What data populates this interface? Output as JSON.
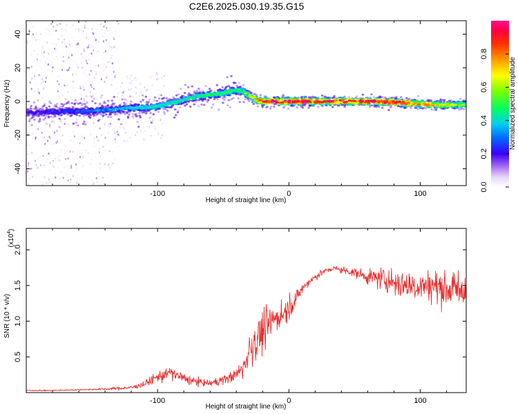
{
  "title": "C2E6.2025.030.19.35.G15",
  "colors": {
    "signal": "#e83030",
    "background": "#ffffff",
    "colormap": [
      "#f4eefd",
      "#d9c4f5",
      "#a070e8",
      "#5a12e0",
      "#2a00ff",
      "#0050ff",
      "#00bfff",
      "#00e0c8",
      "#00ff40",
      "#80ff00",
      "#ffff00",
      "#ffb000",
      "#ff5000",
      "#ff0040",
      "#ff1090"
    ]
  },
  "chart_data": [
    {
      "id": "spectrogram",
      "type": "heatmap",
      "xlabel": "Height of straight line (km)",
      "ylabel": "Frequency (Hz)",
      "xlim": [
        -200,
        135
      ],
      "ylim": [
        -50,
        48
      ],
      "xticks": [
        -100,
        0,
        100
      ],
      "xtick_labels": [
        "-100",
        "0",
        "100"
      ],
      "yticks": [
        -40,
        -20,
        0,
        20,
        40
      ],
      "ytick_labels": [
        "-40",
        "-20",
        "0",
        "20",
        "40"
      ],
      "colorbar": {
        "label": "Normalized spectral amplitude",
        "range": [
          0,
          1
        ],
        "ticks": [
          0.0,
          0.2,
          0.4,
          0.6,
          0.8
        ],
        "tick_labels": [
          "0.0",
          "0.2",
          "0.4",
          "0.6",
          "0.8"
        ]
      },
      "ridge": {
        "x": [
          -200,
          -180,
          -160,
          -140,
          -120,
          -100,
          -90,
          -80,
          -70,
          -60,
          -50,
          -40,
          -35,
          -30,
          -25,
          -20,
          -10,
          0,
          10,
          30,
          50,
          70,
          90,
          110,
          135
        ],
        "freq": [
          -7,
          -6,
          -6,
          -5,
          -4,
          -3,
          -1,
          1,
          3,
          4,
          5,
          7,
          6,
          3,
          1,
          0,
          0,
          0,
          0,
          0,
          0,
          0,
          -1,
          -2,
          -2
        ],
        "amplitude": [
          0.25,
          0.3,
          0.35,
          0.4,
          0.45,
          0.5,
          0.5,
          0.5,
          0.55,
          0.55,
          0.55,
          0.55,
          0.6,
          0.65,
          0.8,
          0.9,
          0.92,
          0.92,
          0.9,
          0.88,
          0.9,
          0.92,
          0.85,
          0.75,
          0.6
        ]
      }
    },
    {
      "id": "snr",
      "type": "line",
      "xlabel": "Height of straight line (km)",
      "ylabel": "SNR (10 * v/v)",
      "multiplier_label": "(x10",
      "multiplier_exp": "4",
      "xlim": [
        -200,
        135
      ],
      "ylim": [
        0,
        2.3
      ],
      "xticks": [
        -100,
        0,
        100
      ],
      "xtick_labels": [
        "-100",
        "0",
        "100"
      ],
      "yticks": [
        0.5,
        1.0,
        1.5,
        2.0
      ],
      "ytick_labels": [
        "0.5",
        "1.0",
        "1.5",
        "2.0"
      ],
      "series": [
        {
          "x": [
            -200,
            -180,
            -160,
            -140,
            -120,
            -110,
            -100,
            -95,
            -90,
            -85,
            -80,
            -75,
            -70,
            -60,
            -50,
            -40,
            -35,
            -30,
            -25,
            -20,
            -15,
            -10,
            -5,
            0,
            5,
            10,
            15,
            20,
            25,
            30,
            35,
            40,
            50,
            60,
            70,
            80,
            90,
            100,
            110,
            120,
            135
          ],
          "y": [
            0.03,
            0.03,
            0.04,
            0.05,
            0.07,
            0.12,
            0.22,
            0.25,
            0.28,
            0.24,
            0.2,
            0.17,
            0.15,
            0.13,
            0.18,
            0.25,
            0.35,
            0.6,
            0.75,
            0.85,
            0.95,
            1.05,
            1.1,
            1.2,
            1.3,
            1.45,
            1.55,
            1.62,
            1.68,
            1.72,
            1.74,
            1.72,
            1.68,
            1.62,
            1.6,
            1.55,
            1.5,
            1.5,
            1.5,
            1.45,
            1.45
          ],
          "noise": [
            0.01,
            0.01,
            0.01,
            0.02,
            0.03,
            0.06,
            0.1,
            0.12,
            0.12,
            0.1,
            0.09,
            0.08,
            0.07,
            0.06,
            0.08,
            0.1,
            0.2,
            0.4,
            0.4,
            0.4,
            0.3,
            0.25,
            0.25,
            0.2,
            0.15,
            0.1,
            0.08,
            0.06,
            0.06,
            0.05,
            0.05,
            0.06,
            0.08,
            0.12,
            0.2,
            0.25,
            0.28,
            0.3,
            0.3,
            0.3,
            0.3
          ]
        }
      ]
    }
  ]
}
